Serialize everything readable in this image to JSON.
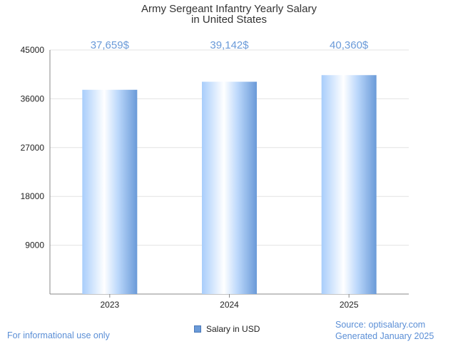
{
  "chart_data": {
    "type": "bar",
    "title_lines": [
      "Army Sergeant Infantry Yearly Salary",
      "in United States"
    ],
    "categories": [
      "2023",
      "2024",
      "2025"
    ],
    "series": [
      {
        "name": "Salary in USD",
        "values": [
          37659,
          39142,
          40360
        ],
        "data_labels": [
          "37,659$",
          "39,142$",
          "40,360$"
        ]
      }
    ],
    "ylim": [
      0,
      45000
    ],
    "y_ticks": [
      9000,
      18000,
      27000,
      36000,
      45000
    ],
    "grid": true,
    "legend_position": "bottom-center",
    "colors": {
      "bar_light": "#ffffff",
      "bar_mid": "#a8cdfb",
      "bar_dark": "#6a9ad8",
      "label": "#6a9ad8",
      "footer": "#5b8fd6"
    }
  },
  "footer": {
    "left": "For informational use only",
    "source": "Source: optisalary.com",
    "generated": "Generated January 2025"
  }
}
